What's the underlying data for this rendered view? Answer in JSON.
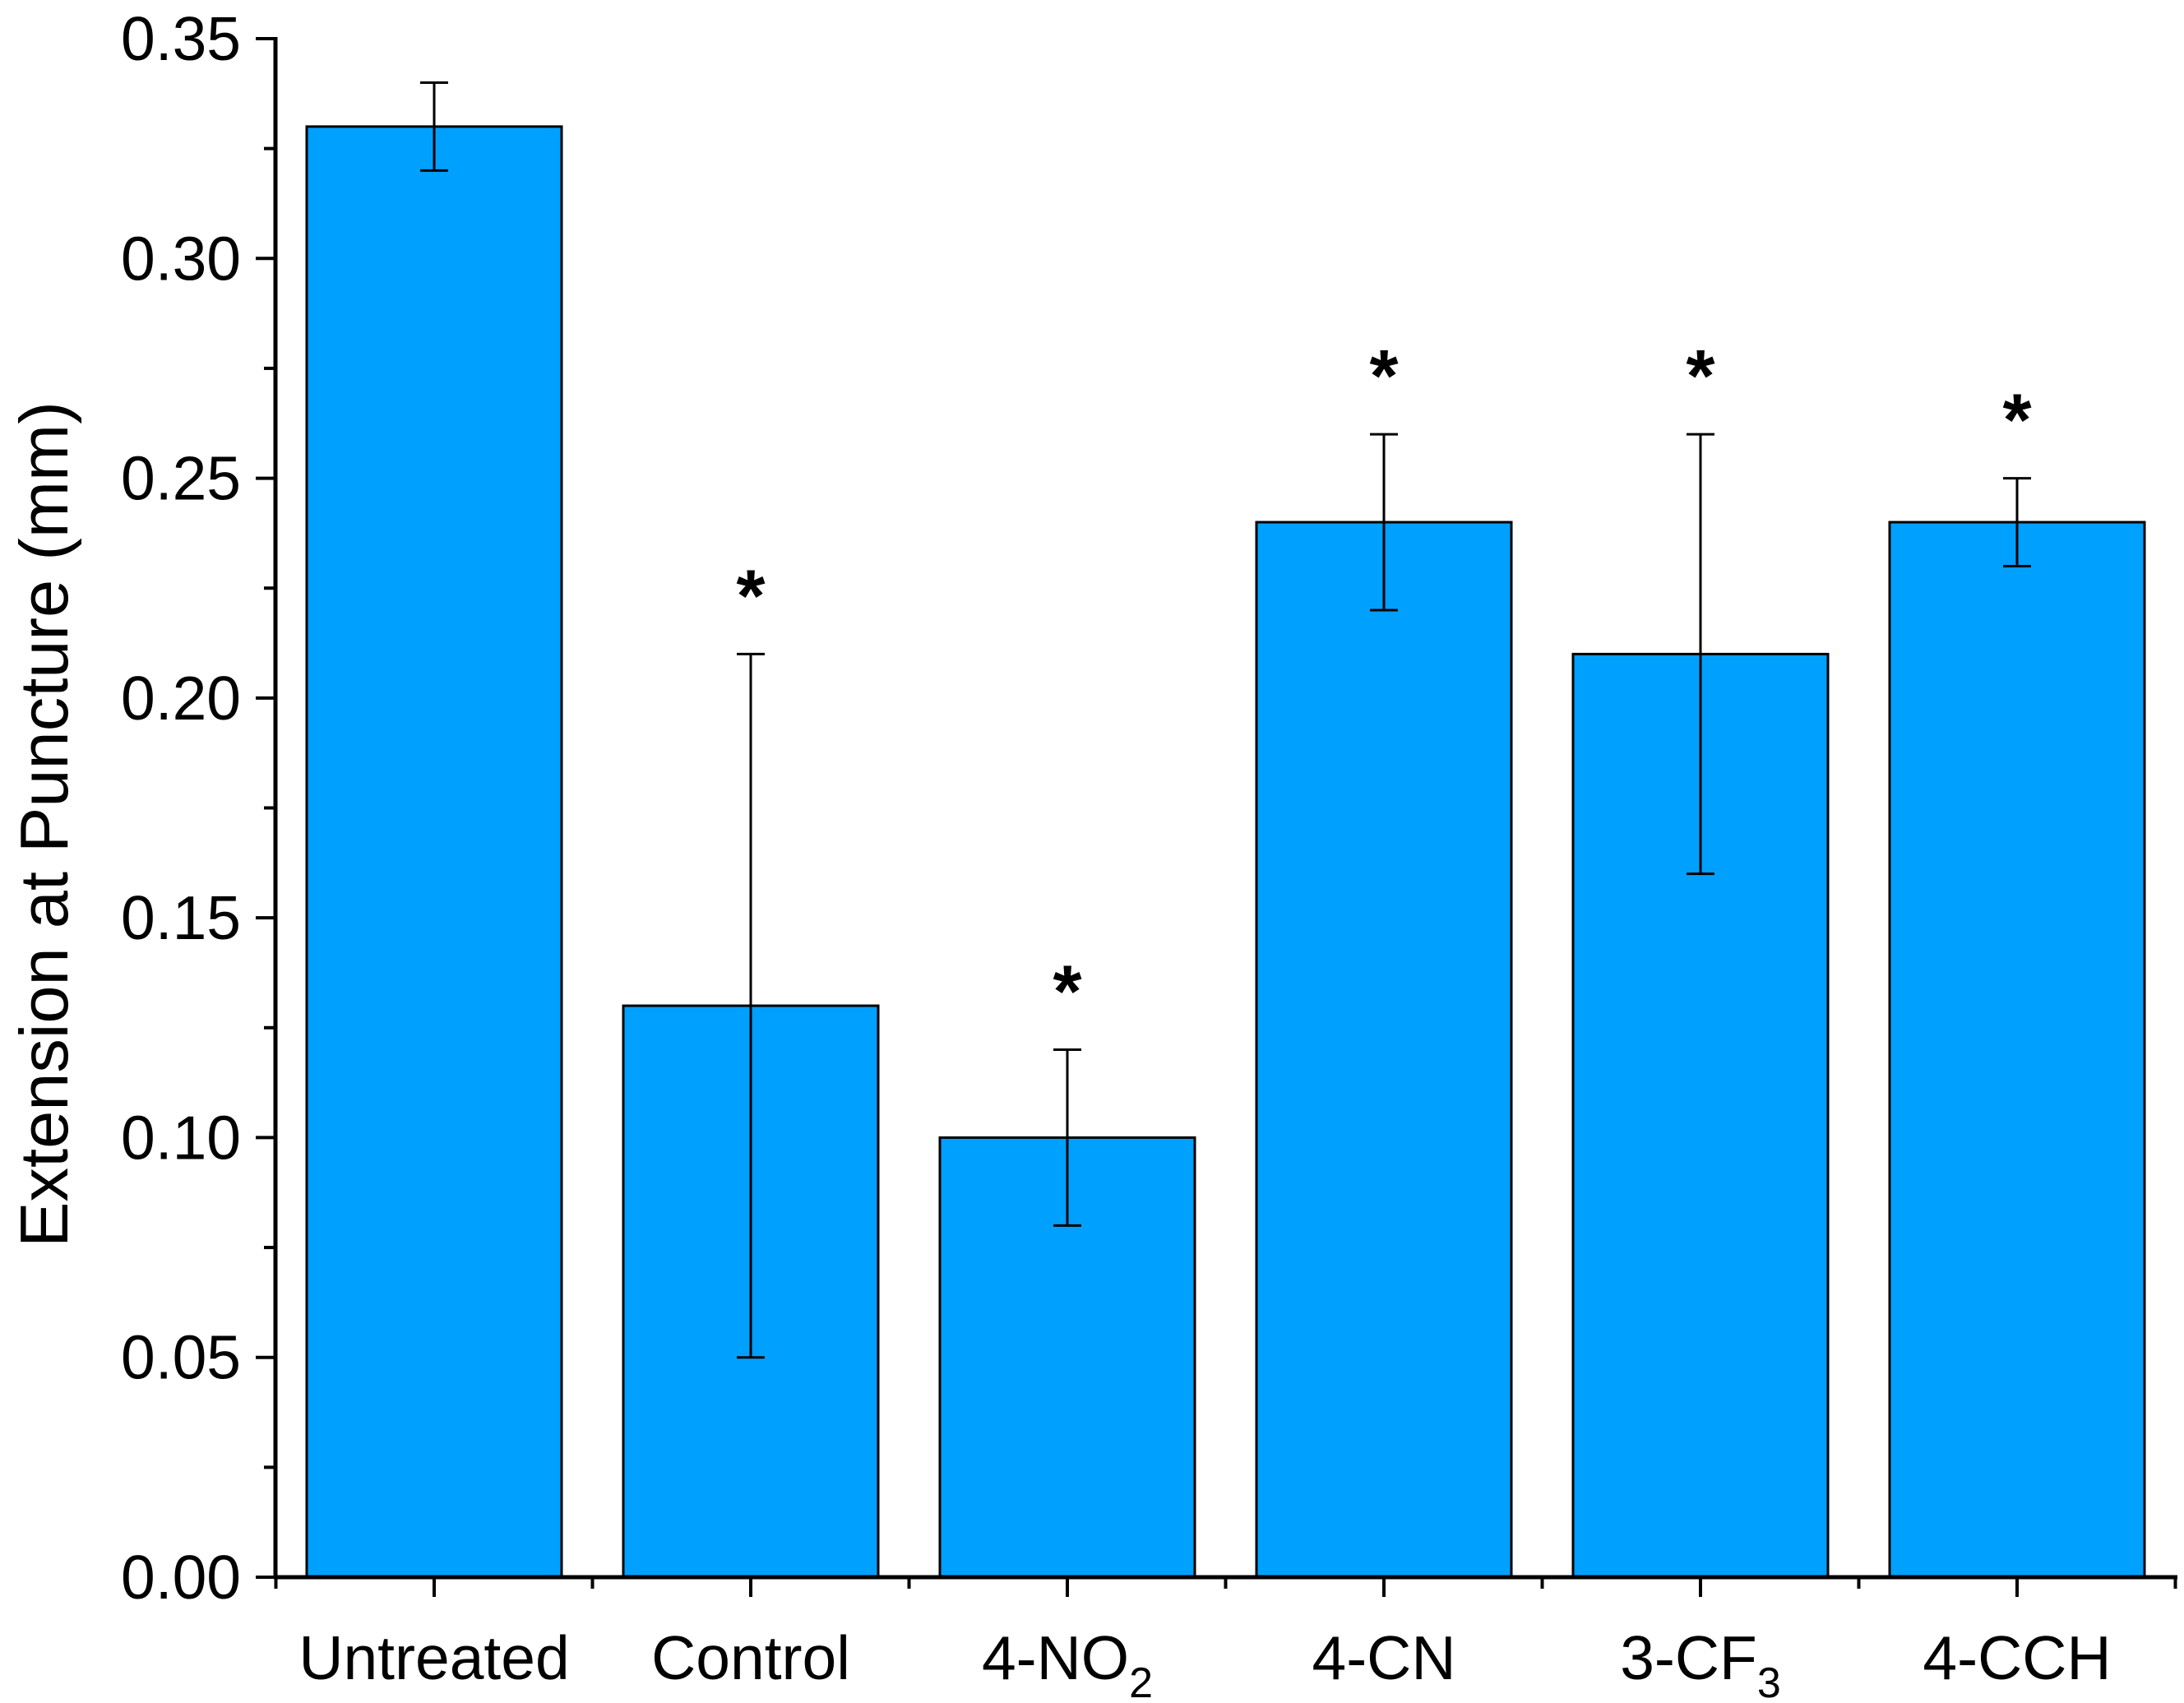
{
  "chart_data": {
    "type": "bar",
    "title": "",
    "xlabel": "",
    "ylabel": "Extension at Puncture (mm)",
    "ylim": [
      0,
      0.35
    ],
    "yticks": [
      "0.00",
      "0.05",
      "0.10",
      "0.15",
      "0.20",
      "0.25",
      "0.30",
      "0.35"
    ],
    "categories": [
      {
        "label": "Untreated",
        "main": "Untreated",
        "sub": ""
      },
      {
        "label": "Control",
        "main": "Control",
        "sub": ""
      },
      {
        "label": "4-NO2",
        "main": "4-NO",
        "sub": "2"
      },
      {
        "label": "4-CN",
        "main": "4-CN",
        "sub": ""
      },
      {
        "label": "3-CF3",
        "main": "3-CF",
        "sub": "3"
      },
      {
        "label": "4-CCH",
        "main": "4-CCH",
        "sub": ""
      }
    ],
    "values": [
      0.33,
      0.13,
      0.1,
      0.24,
      0.21,
      0.24
    ],
    "errors": [
      0.01,
      0.08,
      0.02,
      0.02,
      0.05,
      0.01
    ],
    "significance": [
      "",
      "*",
      "*",
      "*",
      "*",
      "*"
    ],
    "bar_color": "#00A0FF",
    "axis_color": "#000000"
  }
}
